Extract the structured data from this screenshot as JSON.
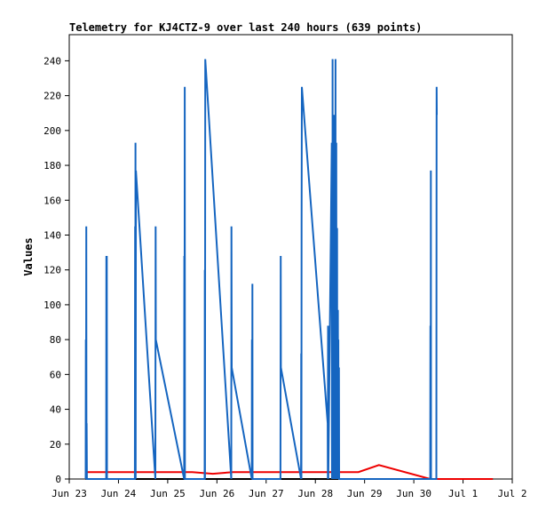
{
  "chart_data": {
    "type": "line",
    "title": "Telemetry for KJ4CTZ-9 over last 240 hours (639 points)",
    "ylabel": "Values",
    "xlabel": "",
    "ylim": [
      0,
      255
    ],
    "xlim": [
      "2025-06-23",
      "2025-07-02"
    ],
    "yticks": [
      0,
      20,
      40,
      60,
      80,
      100,
      120,
      140,
      160,
      180,
      200,
      220,
      240
    ],
    "xticks": [
      {
        "x": "2025-06-23",
        "label": "Jun 23"
      },
      {
        "x": "2025-06-24",
        "label": "Jun 24"
      },
      {
        "x": "2025-06-25",
        "label": "Jun 25"
      },
      {
        "x": "2025-06-26",
        "label": "Jun 26"
      },
      {
        "x": "2025-06-27",
        "label": "Jun 27"
      },
      {
        "x": "2025-06-28",
        "label": "Jun 28"
      },
      {
        "x": "2025-06-29",
        "label": "Jun 29"
      },
      {
        "x": "2025-06-30",
        "label": "Jun 30"
      },
      {
        "x": "2025-07-01",
        "label": "Jul 1"
      },
      {
        "x": "2025-07-02",
        "label": "Jul 2"
      }
    ],
    "grid": false,
    "legend": "none",
    "series": [
      {
        "color": "#000000",
        "x": [
          "2025-06-23 08:00",
          "2025-07-01 14:30"
        ],
        "y": [
          0,
          0
        ]
      },
      {
        "color": "#ee0000",
        "x": [
          "2025-06-23 08:00",
          "2025-06-24 00:00",
          "2025-06-25 00:00",
          "2025-06-25 12:00",
          "2025-06-25 22:00",
          "2025-06-26 08:00",
          "2025-06-27 00:00",
          "2025-06-28 00:00",
          "2025-06-28 12:00",
          "2025-06-28 21:00",
          "2025-06-29 07:00",
          "2025-06-30 08:00",
          "2025-07-01 14:30"
        ],
        "y": [
          4,
          4,
          4,
          4,
          3,
          4,
          4,
          4,
          4,
          4,
          8,
          0,
          0
        ]
      },
      {
        "color": "#1565c0",
        "x": [
          "2025-06-23 08:00",
          "2025-06-23 08:06",
          "2025-06-23 08:12",
          "2025-06-23 08:18",
          "2025-06-23 08:24",
          "2025-06-23 08:30",
          "2025-06-23 08:36",
          "2025-06-23 18:00",
          "2025-06-23 18:06",
          "2025-06-23 18:12",
          "2025-06-23 18:18",
          "2025-06-23 18:24",
          "2025-06-24 08:00",
          "2025-06-24 08:06",
          "2025-06-24 08:12",
          "2025-06-24 08:18",
          "2025-06-24 08:24",
          "2025-06-24 08:30",
          "2025-06-24 18:00",
          "2025-06-24 18:06",
          "2025-06-24 18:12",
          "2025-06-25 08:00",
          "2025-06-25 08:06",
          "2025-06-25 08:12",
          "2025-06-25 08:18",
          "2025-06-25 08:24",
          "2025-06-25 18:00",
          "2025-06-25 18:06",
          "2025-06-25 18:12",
          "2025-06-25 18:18",
          "2025-06-26 07:00",
          "2025-06-26 07:06",
          "2025-06-26 07:12",
          "2025-06-26 17:00",
          "2025-06-26 17:06",
          "2025-06-26 17:12",
          "2025-06-26 17:18",
          "2025-06-26 17:24",
          "2025-06-27 07:00",
          "2025-06-27 07:06",
          "2025-06-27 07:12",
          "2025-06-27 17:00",
          "2025-06-27 17:06",
          "2025-06-27 17:12",
          "2025-06-27 17:18",
          "2025-06-27 17:24",
          "2025-06-28 06:00",
          "2025-06-28 06:06",
          "2025-06-28 06:12",
          "2025-06-28 06:18",
          "2025-06-28 08:00",
          "2025-06-28 08:06",
          "2025-06-28 08:12",
          "2025-06-28 08:18",
          "2025-06-28 08:24",
          "2025-06-28 08:30",
          "2025-06-28 08:36",
          "2025-06-28 08:42",
          "2025-06-28 08:48",
          "2025-06-28 08:54",
          "2025-06-28 09:00",
          "2025-06-28 09:06",
          "2025-06-28 09:12",
          "2025-06-28 09:18",
          "2025-06-28 09:24",
          "2025-06-28 09:30",
          "2025-06-28 09:36",
          "2025-06-28 09:42",
          "2025-06-28 09:48",
          "2025-06-28 09:54",
          "2025-06-28 10:00",
          "2025-06-28 10:06",
          "2025-06-28 10:12",
          "2025-06-28 10:18",
          "2025-06-28 10:24",
          "2025-06-28 10:30",
          "2025-06-28 10:36",
          "2025-06-28 10:42",
          "2025-06-28 10:48",
          "2025-06-28 10:54",
          "2025-06-28 11:00",
          "2025-06-28 11:06",
          "2025-06-28 11:12",
          "2025-06-28 11:18",
          "2025-06-28 11:24",
          "2025-06-28 11:30",
          "2025-06-28 11:36",
          "2025-06-30 08:00",
          "2025-06-30 08:06",
          "2025-06-30 08:12",
          "2025-06-30 08:18",
          "2025-06-30 08:24",
          "2025-06-30 11:00",
          "2025-06-30 11:06",
          "2025-06-30 11:12"
        ],
        "y": [
          0,
          80,
          0,
          145,
          0,
          32,
          0,
          0,
          128,
          0,
          128,
          0,
          0,
          145,
          0,
          193,
          0,
          177,
          0,
          145,
          80,
          0,
          128,
          0,
          225,
          0,
          0,
          120,
          0,
          241,
          0,
          145,
          64,
          0,
          80,
          0,
          112,
          0,
          0,
          128,
          64,
          0,
          72,
          0,
          145,
          225,
          32,
          0,
          88,
          0,
          193,
          0,
          160,
          0,
          241,
          0,
          209,
          0,
          80,
          0,
          177,
          0,
          209,
          0,
          112,
          0,
          193,
          0,
          241,
          0,
          64,
          0,
          193,
          0,
          48,
          0,
          144,
          0,
          64,
          0,
          97,
          0,
          80,
          16,
          0,
          64,
          0,
          0,
          88,
          0,
          177,
          0,
          0,
          225,
          209
        ]
      }
    ]
  }
}
